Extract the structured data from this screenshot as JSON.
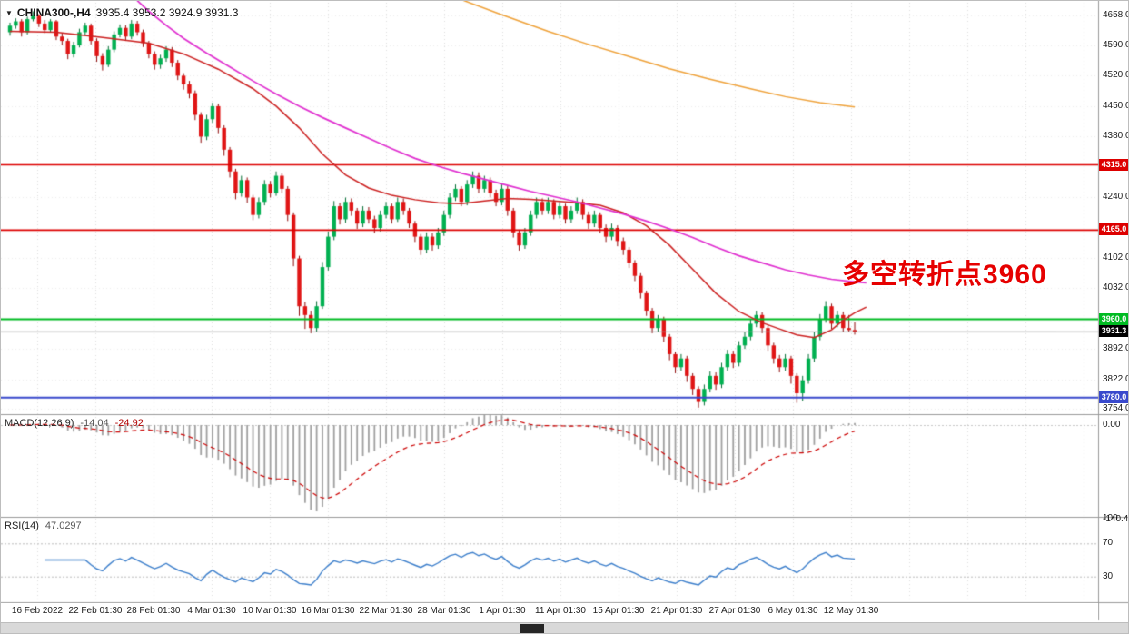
{
  "header": {
    "expand_icon": "▼",
    "symbol": "CHINA300-,H4",
    "ohlc_values": "3935.4 3953.2 3924.9 3931.3"
  },
  "colors": {
    "up": "#00b050",
    "up_border": "#046e34",
    "down": "#e01515",
    "down_border": "#8f0a0a",
    "grid": "#dedede",
    "macd_hist": "#a0a0a0",
    "macd_signal": "#cc0000",
    "rsi_line": "#3b7ecb",
    "annotation": "#e60000",
    "current_price_line": "#9a9a9a"
  },
  "chart_data": {
    "type": "candlestick",
    "symbol": "CHINA300-",
    "timeframe": "H4",
    "last_ohlc": {
      "open": 3935.4,
      "high": 3953.2,
      "low": 3924.9,
      "close": 3931.3
    },
    "y_range": [
      3742,
      4692
    ],
    "price_axis_labels": [
      "4658.0",
      "4590.0",
      "4520.0",
      "4450.0",
      "4380.0",
      "4240.0",
      "4102.0",
      "4032.0",
      "3892.0",
      "3822.0",
      "3754.0"
    ],
    "hlines": [
      {
        "label": "4315.0",
        "price": 4315.0,
        "color": "#dd0000"
      },
      {
        "label": "4165.0",
        "price": 4165.0,
        "color": "#dd0000"
      },
      {
        "label": "3960.0",
        "price": 3960.0,
        "color": "#00bb22"
      },
      {
        "label": "3780.0",
        "price": 3780.0,
        "color": "#3949cc"
      }
    ],
    "current_price": {
      "label": "3931.3",
      "value": 3931.3,
      "badge_bg": "#000000"
    },
    "annotation": {
      "text": "多空转折点3960",
      "color": "#e60000"
    },
    "x_labels": [
      "16 Feb 2022",
      "22 Feb 01:30",
      "28 Feb 01:30",
      "4 Mar 01:30",
      "10 Mar 01:30",
      "16 Mar 01:30",
      "22 Mar 01:30",
      "28 Mar 01:30",
      "1 Apr 01:30",
      "11 Apr 01:30",
      "15 Apr 01:30",
      "21 Apr 01:30",
      "27 Apr 01:30",
      "6 May 01:30",
      "12 May 01:30"
    ],
    "candles": [
      [
        4620,
        4642,
        4612,
        4635
      ],
      [
        4635,
        4652,
        4628,
        4645
      ],
      [
        4645,
        4650,
        4610,
        4620
      ],
      [
        4620,
        4656,
        4615,
        4650
      ],
      [
        4650,
        4668,
        4645,
        4658
      ],
      [
        4658,
        4662,
        4632,
        4640
      ],
      [
        4640,
        4648,
        4618,
        4625
      ],
      [
        4625,
        4650,
        4620,
        4645
      ],
      [
        4645,
        4648,
        4602,
        4610
      ],
      [
        4610,
        4618,
        4590,
        4600
      ],
      [
        4600,
        4605,
        4558,
        4570
      ],
      [
        4570,
        4598,
        4562,
        4590
      ],
      [
        4590,
        4628,
        4585,
        4620
      ],
      [
        4620,
        4642,
        4612,
        4635
      ],
      [
        4635,
        4640,
        4592,
        4600
      ],
      [
        4600,
        4606,
        4552,
        4565
      ],
      [
        4565,
        4572,
        4532,
        4545
      ],
      [
        4545,
        4588,
        4540,
        4580
      ],
      [
        4580,
        4622,
        4574,
        4615
      ],
      [
        4615,
        4638,
        4608,
        4630
      ],
      [
        4630,
        4636,
        4600,
        4610
      ],
      [
        4610,
        4648,
        4604,
        4640
      ],
      [
        4640,
        4646,
        4612,
        4620
      ],
      [
        4620,
        4626,
        4586,
        4595
      ],
      [
        4595,
        4600,
        4560,
        4570
      ],
      [
        4570,
        4576,
        4534,
        4545
      ],
      [
        4545,
        4568,
        4536,
        4560
      ],
      [
        4560,
        4588,
        4552,
        4580
      ],
      [
        4580,
        4586,
        4540,
        4550
      ],
      [
        4550,
        4556,
        4510,
        4520
      ],
      [
        4520,
        4526,
        4488,
        4500
      ],
      [
        4500,
        4508,
        4468,
        4480
      ],
      [
        4480,
        4486,
        4418,
        4430
      ],
      [
        4430,
        4436,
        4366,
        4380
      ],
      [
        4380,
        4430,
        4372,
        4420
      ],
      [
        4420,
        4458,
        4412,
        4450
      ],
      [
        4450,
        4456,
        4388,
        4400
      ],
      [
        4400,
        4406,
        4336,
        4350
      ],
      [
        4350,
        4356,
        4286,
        4300
      ],
      [
        4300,
        4306,
        4236,
        4250
      ],
      [
        4250,
        4290,
        4242,
        4280
      ],
      [
        4280,
        4286,
        4228,
        4240
      ],
      [
        4240,
        4246,
        4188,
        4200
      ],
      [
        4200,
        4240,
        4192,
        4230
      ],
      [
        4230,
        4280,
        4222,
        4270
      ],
      [
        4270,
        4278,
        4240,
        4250
      ],
      [
        4250,
        4300,
        4244,
        4290
      ],
      [
        4290,
        4296,
        4250,
        4260
      ],
      [
        4260,
        4266,
        4186,
        4200
      ],
      [
        4200,
        4206,
        4082,
        4100
      ],
      [
        4100,
        4106,
        3968,
        3990
      ],
      [
        3990,
        4000,
        3938,
        3970
      ],
      [
        3970,
        3980,
        3928,
        3940
      ],
      [
        3940,
        4002,
        3932,
        3990
      ],
      [
        3990,
        4092,
        3984,
        4080
      ],
      [
        4080,
        4162,
        4072,
        4150
      ],
      [
        4150,
        4232,
        4142,
        4220
      ],
      [
        4220,
        4228,
        4178,
        4190
      ],
      [
        4190,
        4240,
        4182,
        4230
      ],
      [
        4230,
        4238,
        4198,
        4210
      ],
      [
        4210,
        4216,
        4168,
        4180
      ],
      [
        4180,
        4220,
        4172,
        4210
      ],
      [
        4210,
        4218,
        4180,
        4190
      ],
      [
        4190,
        4198,
        4158,
        4170
      ],
      [
        4170,
        4210,
        4162,
        4200
      ],
      [
        4200,
        4230,
        4192,
        4220
      ],
      [
        4220,
        4226,
        4180,
        4190
      ],
      [
        4190,
        4240,
        4184,
        4230
      ],
      [
        4230,
        4238,
        4200,
        4210
      ],
      [
        4210,
        4216,
        4170,
        4180
      ],
      [
        4180,
        4186,
        4138,
        4150
      ],
      [
        4150,
        4156,
        4108,
        4120
      ],
      [
        4120,
        4160,
        4112,
        4150
      ],
      [
        4150,
        4158,
        4118,
        4130
      ],
      [
        4130,
        4170,
        4122,
        4160
      ],
      [
        4160,
        4210,
        4152,
        4200
      ],
      [
        4200,
        4250,
        4192,
        4240
      ],
      [
        4240,
        4270,
        4232,
        4260
      ],
      [
        4260,
        4266,
        4220,
        4230
      ],
      [
        4230,
        4280,
        4222,
        4270
      ],
      [
        4270,
        4300,
        4262,
        4290
      ],
      [
        4290,
        4298,
        4250,
        4260
      ],
      [
        4260,
        4290,
        4252,
        4280
      ],
      [
        4280,
        4286,
        4240,
        4250
      ],
      [
        4250,
        4258,
        4220,
        4230
      ],
      [
        4230,
        4270,
        4222,
        4260
      ],
      [
        4260,
        4266,
        4198,
        4210
      ],
      [
        4210,
        4216,
        4148,
        4160
      ],
      [
        4160,
        4166,
        4118,
        4130
      ],
      [
        4130,
        4170,
        4122,
        4160
      ],
      [
        4160,
        4210,
        4152,
        4200
      ],
      [
        4200,
        4240,
        4192,
        4230
      ],
      [
        4230,
        4238,
        4200,
        4210
      ],
      [
        4210,
        4240,
        4202,
        4230
      ],
      [
        4230,
        4236,
        4190,
        4200
      ],
      [
        4200,
        4230,
        4192,
        4220
      ],
      [
        4220,
        4226,
        4180,
        4190
      ],
      [
        4190,
        4220,
        4182,
        4210
      ],
      [
        4210,
        4240,
        4202,
        4230
      ],
      [
        4230,
        4236,
        4190,
        4200
      ],
      [
        4200,
        4208,
        4168,
        4180
      ],
      [
        4180,
        4210,
        4172,
        4200
      ],
      [
        4200,
        4206,
        4158,
        4170
      ],
      [
        4170,
        4178,
        4138,
        4150
      ],
      [
        4150,
        4180,
        4142,
        4170
      ],
      [
        4170,
        4176,
        4128,
        4140
      ],
      [
        4140,
        4148,
        4108,
        4120
      ],
      [
        4120,
        4126,
        4078,
        4090
      ],
      [
        4090,
        4096,
        4048,
        4060
      ],
      [
        4060,
        4066,
        4008,
        4020
      ],
      [
        4020,
        4026,
        3968,
        3980
      ],
      [
        3980,
        3986,
        3928,
        3940
      ],
      [
        3940,
        3970,
        3932,
        3960
      ],
      [
        3960,
        3966,
        3908,
        3920
      ],
      [
        3920,
        3926,
        3866,
        3880
      ],
      [
        3880,
        3886,
        3836,
        3850
      ],
      [
        3850,
        3880,
        3842,
        3870
      ],
      [
        3870,
        3876,
        3816,
        3830
      ],
      [
        3830,
        3836,
        3786,
        3800
      ],
      [
        3800,
        3806,
        3757,
        3770
      ],
      [
        3770,
        3810,
        3762,
        3800
      ],
      [
        3800,
        3840,
        3792,
        3830
      ],
      [
        3830,
        3838,
        3798,
        3810
      ],
      [
        3810,
        3860,
        3802,
        3850
      ],
      [
        3850,
        3890,
        3842,
        3880
      ],
      [
        3880,
        3888,
        3848,
        3860
      ],
      [
        3860,
        3910,
        3852,
        3900
      ],
      [
        3900,
        3930,
        3892,
        3920
      ],
      [
        3920,
        3960,
        3912,
        3950
      ],
      [
        3950,
        3980,
        3942,
        3970
      ],
      [
        3970,
        3976,
        3928,
        3940
      ],
      [
        3940,
        3946,
        3888,
        3900
      ],
      [
        3900,
        3906,
        3858,
        3870
      ],
      [
        3870,
        3878,
        3838,
        3850
      ],
      [
        3850,
        3880,
        3842,
        3870
      ],
      [
        3870,
        3876,
        3812,
        3830
      ],
      [
        3830,
        3836,
        3768,
        3790
      ],
      [
        3790,
        3830,
        3772,
        3820
      ],
      [
        3820,
        3880,
        3812,
        3870
      ],
      [
        3870,
        3930,
        3862,
        3920
      ],
      [
        3920,
        3972,
        3912,
        3960
      ],
      [
        3960,
        4002,
        3952,
        3990
      ],
      [
        3990,
        3996,
        3938,
        3950
      ],
      [
        3950,
        3980,
        3942,
        3970
      ],
      [
        3970,
        3978,
        3930,
        3940
      ],
      [
        3940,
        3970,
        3932,
        3935.4
      ],
      [
        3935.4,
        3953.2,
        3924.9,
        3931.3
      ]
    ],
    "moving_averages": [
      {
        "name": "ma-fast-red",
        "color": "#cc2020",
        "points": [
          [
            0,
            4622
          ],
          [
            8,
            4620
          ],
          [
            16,
            4608
          ],
          [
            24,
            4595
          ],
          [
            30,
            4570
          ],
          [
            36,
            4535
          ],
          [
            42,
            4490
          ],
          [
            46,
            4450
          ],
          [
            50,
            4400
          ],
          [
            54,
            4340
          ],
          [
            58,
            4292
          ],
          [
            62,
            4262
          ],
          [
            66,
            4245
          ],
          [
            70,
            4235
          ],
          [
            74,
            4228
          ],
          [
            78,
            4226
          ],
          [
            82,
            4232
          ],
          [
            86,
            4238
          ],
          [
            90,
            4236
          ],
          [
            94,
            4232
          ],
          [
            98,
            4228
          ],
          [
            102,
            4222
          ],
          [
            106,
            4205
          ],
          [
            110,
            4175
          ],
          [
            114,
            4130
          ],
          [
            118,
            4075
          ],
          [
            122,
            4020
          ],
          [
            126,
            3978
          ],
          [
            130,
            3952
          ],
          [
            133,
            3938
          ],
          [
            136,
            3924
          ],
          [
            139,
            3918
          ],
          [
            142,
            3936
          ],
          [
            144,
            3958
          ],
          [
            146,
            3975
          ],
          [
            148,
            3988
          ]
        ]
      },
      {
        "name": "ma-slow-magenta",
        "color": "#e030d0",
        "points": [
          [
            21,
            4705
          ],
          [
            24,
            4668
          ],
          [
            27,
            4636
          ],
          [
            30,
            4606
          ],
          [
            34,
            4572
          ],
          [
            38,
            4540
          ],
          [
            42,
            4508
          ],
          [
            46,
            4478
          ],
          [
            50,
            4450
          ],
          [
            54,
            4424
          ],
          [
            58,
            4400
          ],
          [
            62,
            4376
          ],
          [
            66,
            4352
          ],
          [
            70,
            4330
          ],
          [
            74,
            4312
          ],
          [
            78,
            4296
          ],
          [
            82,
            4282
          ],
          [
            86,
            4268
          ],
          [
            90,
            4254
          ],
          [
            94,
            4242
          ],
          [
            98,
            4230
          ],
          [
            102,
            4216
          ],
          [
            106,
            4202
          ],
          [
            110,
            4186
          ],
          [
            114,
            4168
          ],
          [
            118,
            4148
          ],
          [
            122,
            4126
          ],
          [
            126,
            4106
          ],
          [
            130,
            4090
          ],
          [
            134,
            4074
          ],
          [
            138,
            4062
          ],
          [
            142,
            4052
          ],
          [
            146,
            4046
          ],
          [
            148,
            4044
          ]
        ]
      },
      {
        "name": "ma-long-orange",
        "color": "#efa23a",
        "points": [
          [
            77,
            4700
          ],
          [
            85,
            4660
          ],
          [
            93,
            4622
          ],
          [
            100,
            4592
          ],
          [
            107,
            4564
          ],
          [
            114,
            4536
          ],
          [
            121,
            4512
          ],
          [
            128,
            4490
          ],
          [
            134,
            4472
          ],
          [
            140,
            4458
          ],
          [
            146,
            4448
          ]
        ]
      }
    ],
    "indicators": {
      "macd": {
        "label": "MACD(12,26,9)",
        "value_main": "-14.04",
        "value_signal": "-24.92",
        "params": [
          12,
          26,
          9
        ],
        "axis_zero_label": "0.00",
        "axis_min_label": "-140.44",
        "axis_min_value": -140.44
      },
      "rsi": {
        "label": "RSI(14)",
        "value": "47.0297",
        "period": 14,
        "axis_labels": [
          100,
          70,
          30
        ],
        "levels": [
          70,
          30
        ]
      }
    }
  }
}
